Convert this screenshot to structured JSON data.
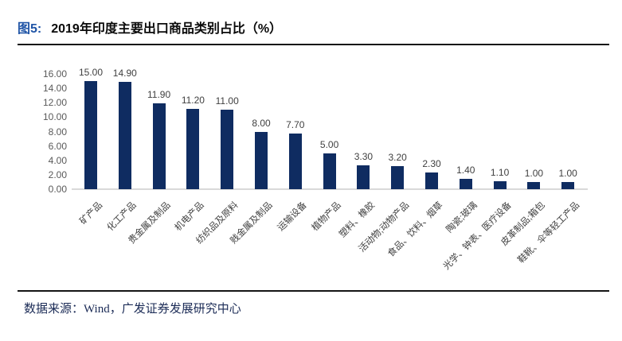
{
  "figure": {
    "label": "图5:",
    "title": "2019年印度主要出口商品类别占比（%）"
  },
  "footer": {
    "source": "数据来源：Wind，广发证券发展研究中心"
  },
  "colors": {
    "bar": "#0F2C61",
    "figure_label_blue": "#1F54A6",
    "axis_text": "#595959",
    "value_label": "#404040",
    "category_label": "#404040",
    "axis_line": "#D9D9D9",
    "divider": "#141414",
    "source_text": "#1B2B56"
  },
  "chart_data": {
    "type": "bar",
    "title": "2019年印度主要出口商品类别占比（%）",
    "categories": [
      "矿产品",
      "化工产品",
      "贵金属及制品",
      "机电产品",
      "纺织品及原料",
      "贱金属及制品",
      "运输设备",
      "植物产品",
      "塑料、橡胶",
      "活动物;动物产品",
      "食品、饮料、烟草",
      "陶瓷;玻璃",
      "光学、钟表、医疗设备",
      "皮革制品;箱包",
      "鞋靴、伞等轻工产品"
    ],
    "values": [
      15.0,
      14.9,
      11.9,
      11.2,
      11.0,
      8.0,
      7.7,
      5.0,
      3.3,
      3.2,
      2.3,
      1.4,
      1.1,
      1.0,
      1.0
    ],
    "xlabel": "",
    "ylabel": "",
    "ylim": [
      0,
      16
    ],
    "ytick_step": 2,
    "yticks": [
      0,
      2,
      4,
      6,
      8,
      10,
      12,
      14,
      16
    ],
    "value_label_decimals": 2,
    "grid": false,
    "legend": "none",
    "data_labels": true,
    "category_label_rotation_deg": -45
  }
}
